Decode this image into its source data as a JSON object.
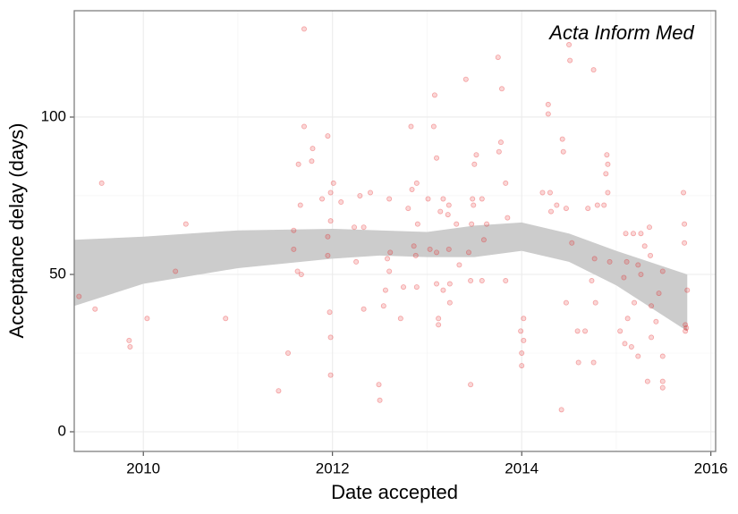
{
  "chart_data": {
    "type": "scatter",
    "annotation": "Acta Inform Med",
    "x_label": "Date accepted",
    "y_label": "Acceptance delay (days)",
    "xlim": [
      2009.27,
      2016.05
    ],
    "xticks": [
      2010,
      2012,
      2014,
      2016
    ],
    "ylim": [
      -6.25,
      133.8
    ],
    "yticks": [
      0,
      50,
      100
    ],
    "grid": true,
    "minor_grid": true,
    "color": "#e41a1c",
    "x": [
      2009.32,
      2009.49,
      2009.56,
      2009.85,
      2009.86,
      2010.04,
      2010.34,
      2010.45,
      2010.87,
      2011.43,
      2011.53,
      2011.59,
      2011.59,
      2011.63,
      2011.64,
      2011.67,
      2011.66,
      2011.7,
      2011.7,
      2011.78,
      2011.79,
      2011.89,
      2011.95,
      2011.95,
      2011.95,
      2011.97,
      2011.98,
      2011.98,
      2011.98,
      2012.01,
      2011.98,
      2012.09,
      2012.23,
      2012.25,
      2012.29,
      2012.33,
      2012.4,
      2012.33,
      2012.49,
      2012.5,
      2012.54,
      2012.56,
      2012.58,
      2012.6,
      2012.6,
      2012.61,
      2012.72,
      2012.75,
      2012.8,
      2012.83,
      2012.84,
      2012.86,
      2012.88,
      2012.89,
      2012.89,
      2012.9,
      2013.01,
      2013.03,
      2013.07,
      2013.08,
      2013.1,
      2013.1,
      2013.1,
      2013.12,
      2013.12,
      2013.14,
      2013.17,
      2013.17,
      2013.22,
      2013.23,
      2013.23,
      2013.24,
      2013.24,
      2013.31,
      2013.34,
      2013.41,
      2013.44,
      2013.46,
      2013.46,
      2013.47,
      2013.48,
      2013.49,
      2013.5,
      2013.52,
      2013.58,
      2013.58,
      2013.6,
      2013.63,
      2013.75,
      2013.79,
      2013.76,
      2013.78,
      2013.83,
      2013.83,
      2013.85,
      2013.99,
      2014.0,
      2014.0,
      2014.02,
      2014.02,
      2014.22,
      2014.28,
      2014.28,
      2014.3,
      2014.31,
      2014.37,
      2014.42,
      2014.43,
      2014.44,
      2014.47,
      2014.47,
      2014.5,
      2014.51,
      2014.53,
      2014.59,
      2014.6,
      2014.67,
      2014.7,
      2014.76,
      2014.76,
      2014.74,
      2014.77,
      2014.78,
      2014.8,
      2014.87,
      2014.89,
      2014.9,
      2014.91,
      2014.91,
      2014.93,
      2015.04,
      2015.08,
      2015.09,
      2015.1,
      2015.11,
      2015.12,
      2015.16,
      2015.18,
      2015.19,
      2015.23,
      2015.23,
      2015.26,
      2015.26,
      2015.3,
      2015.33,
      2015.35,
      2015.36,
      2015.37,
      2015.37,
      2015.42,
      2015.45,
      2015.49,
      2015.49,
      2015.49,
      2015.49,
      2015.71,
      2015.72,
      2015.72,
      2015.73,
      2015.73,
      2015.74,
      2015.75
    ],
    "values": [
      43,
      39,
      79,
      29,
      27,
      36,
      51,
      66,
      36,
      13,
      25,
      64,
      58,
      51,
      85,
      50,
      72,
      97,
      128,
      86,
      90,
      74,
      94,
      62,
      56,
      38,
      30,
      18,
      76,
      79,
      67,
      73,
      65,
      54,
      75,
      39,
      76,
      65,
      15,
      10,
      40,
      45,
      55,
      74,
      51,
      57,
      36,
      46,
      71,
      97,
      77,
      59,
      56,
      79,
      46,
      66,
      74,
      58,
      97,
      107,
      87,
      47,
      57,
      36,
      34,
      70,
      74,
      45,
      69,
      58,
      72,
      41,
      47,
      66,
      53,
      112,
      57,
      15,
      48,
      66,
      74,
      72,
      85,
      88,
      48,
      74,
      61,
      66,
      119,
      109,
      89,
      92,
      79,
      48,
      68,
      32,
      25,
      21,
      29,
      36,
      76,
      104,
      101,
      76,
      70,
      72,
      7,
      93,
      89,
      41,
      71,
      123,
      118,
      60,
      32,
      22,
      32,
      71,
      115,
      22,
      48,
      55,
      41,
      72,
      72,
      82,
      88,
      85,
      76,
      54,
      32,
      49,
      28,
      63,
      54,
      36,
      27,
      63,
      41,
      24,
      53,
      50,
      63,
      59,
      16,
      65,
      56,
      40,
      30,
      35,
      44,
      51,
      24,
      16,
      14,
      76,
      66,
      60,
      34,
      32,
      33,
      45
    ],
    "band": {
      "color": "#cccccc",
      "x": [
        2009.27,
        2010,
        2011,
        2012,
        2012.5,
        2013,
        2013.5,
        2014,
        2014.5,
        2015,
        2015.75
      ],
      "upper": [
        61,
        62,
        64,
        64.5,
        64,
        63.5,
        65.5,
        66.5,
        63,
        57.5,
        50
      ],
      "lower": [
        40,
        47,
        52,
        55,
        56,
        55.5,
        55.5,
        57.5,
        54,
        46.5,
        32
      ]
    }
  }
}
